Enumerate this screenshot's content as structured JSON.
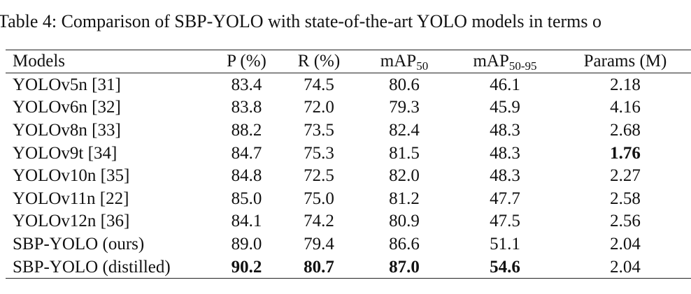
{
  "caption": "Table 4: Comparison of SBP-YOLO with state-of-the-art YOLO models in terms o",
  "table": {
    "header": [
      {
        "text": "Models"
      },
      {
        "text": "P (%)"
      },
      {
        "text": "R (%)"
      },
      {
        "text": "mAP",
        "sub": "50"
      },
      {
        "text": "mAP",
        "sub": "50-95"
      },
      {
        "text": "Params (M)"
      }
    ],
    "rows": [
      {
        "cells": [
          "YOLOv5n [31]",
          "83.4",
          "74.5",
          "80.6",
          "46.1",
          "2.18"
        ],
        "bold": []
      },
      {
        "cells": [
          "YOLOv6n [32]",
          "83.8",
          "72.0",
          "79.3",
          "45.9",
          "4.16"
        ],
        "bold": []
      },
      {
        "cells": [
          "YOLOv8n [33]",
          "88.2",
          "73.5",
          "82.4",
          "48.3",
          "2.68"
        ],
        "bold": []
      },
      {
        "cells": [
          "YOLOv9t [34]",
          "84.7",
          "75.3",
          "81.5",
          "48.3",
          "1.76"
        ],
        "bold": [
          5
        ]
      },
      {
        "cells": [
          "YOLOv10n [35]",
          "84.8",
          "72.5",
          "82.0",
          "48.3",
          "2.27"
        ],
        "bold": []
      },
      {
        "cells": [
          "YOLOv11n [22]",
          "85.0",
          "75.0",
          "81.2",
          "47.7",
          "2.58"
        ],
        "bold": []
      },
      {
        "cells": [
          "YOLOv12n [36]",
          "84.1",
          "74.2",
          "80.9",
          "47.5",
          "2.56"
        ],
        "bold": []
      },
      {
        "cells": [
          "SBP-YOLO (ours)",
          "89.0",
          "79.4",
          "86.6",
          "51.1",
          "2.04"
        ],
        "bold": []
      },
      {
        "cells": [
          "SBP-YOLO (distilled)",
          "90.2",
          "80.7",
          "87.0",
          "54.6",
          "2.04"
        ],
        "bold": [
          1,
          2,
          3,
          4
        ]
      }
    ]
  }
}
